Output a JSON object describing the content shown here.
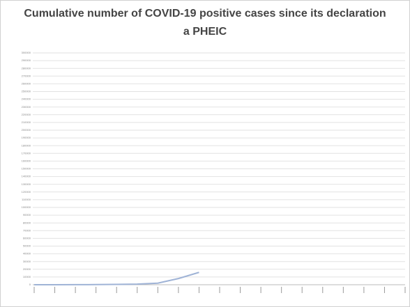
{
  "chart_data": {
    "type": "line",
    "title": "Cumulative number of COVID-19 positive cases since its declaration a PHEIC",
    "categories": [
      null,
      null,
      null,
      null,
      null,
      null,
      null,
      null,
      null,
      null,
      null,
      null,
      null,
      null,
      null,
      null,
      null,
      null,
      null
    ],
    "series": [
      {
        "color": "#9fb3d6",
        "values": [
          0,
          0,
          100,
          200,
          400,
          800,
          2000,
          8000,
          16000,
          null,
          null,
          null,
          null,
          null,
          null,
          null,
          null,
          null,
          null
        ]
      }
    ],
    "ylim": [
      0,
      300000
    ],
    "yticks": [
      0,
      10000,
      20000,
      30000,
      40000,
      50000,
      60000,
      70000,
      80000,
      90000,
      100000,
      110000,
      120000,
      130000,
      140000,
      150000,
      160000,
      170000,
      180000,
      190000,
      200000,
      210000,
      220000,
      230000,
      240000,
      250000,
      260000,
      270000,
      280000,
      290000,
      300000
    ],
    "grid": true
  }
}
